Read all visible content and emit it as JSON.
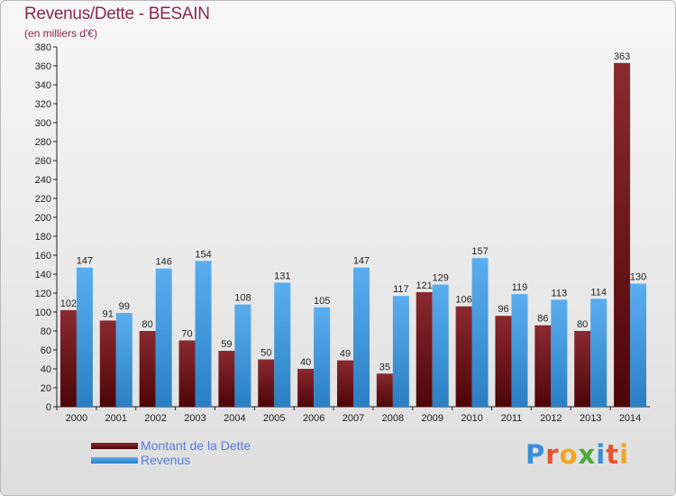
{
  "header": {
    "title": "Revenus/Dette - BESAIN",
    "subtitle": "(en milliers d'€)"
  },
  "colors": {
    "dette": "#6b0d12",
    "revenus": "#3c9be0"
  },
  "chart_data": {
    "type": "bar",
    "title": "Revenus/Dette - BESAIN",
    "subtitle": "(en milliers d'€)",
    "categories": [
      "2000",
      "2001",
      "2002",
      "2003",
      "2004",
      "2005",
      "2006",
      "2007",
      "2008",
      "2009",
      "2010",
      "2011",
      "2012",
      "2013",
      "2014"
    ],
    "series": [
      {
        "name": "Montant de la Dette",
        "values": [
          102,
          91,
          80,
          70,
          59,
          50,
          40,
          49,
          35,
          121,
          106,
          96,
          86,
          80,
          363
        ]
      },
      {
        "name": "Revenus",
        "values": [
          147,
          99,
          146,
          154,
          108,
          131,
          105,
          147,
          117,
          129,
          157,
          119,
          113,
          114,
          130
        ]
      }
    ],
    "ylim": [
      0,
      380
    ],
    "ytick_step": 20,
    "grid": false,
    "legend_position": "bottom-left"
  },
  "legend": {
    "items": [
      {
        "label": "Montant de la Dette"
      },
      {
        "label": "Revenus"
      }
    ]
  },
  "logo": {
    "letters": [
      "P",
      "r",
      "o",
      "x",
      "i",
      "t",
      "i"
    ],
    "colors": [
      "#3a8fd9",
      "#e2552f",
      "#f2a623",
      "#4ca93a",
      "#3a8fd9",
      "#e2552f",
      "#f2a623"
    ]
  }
}
